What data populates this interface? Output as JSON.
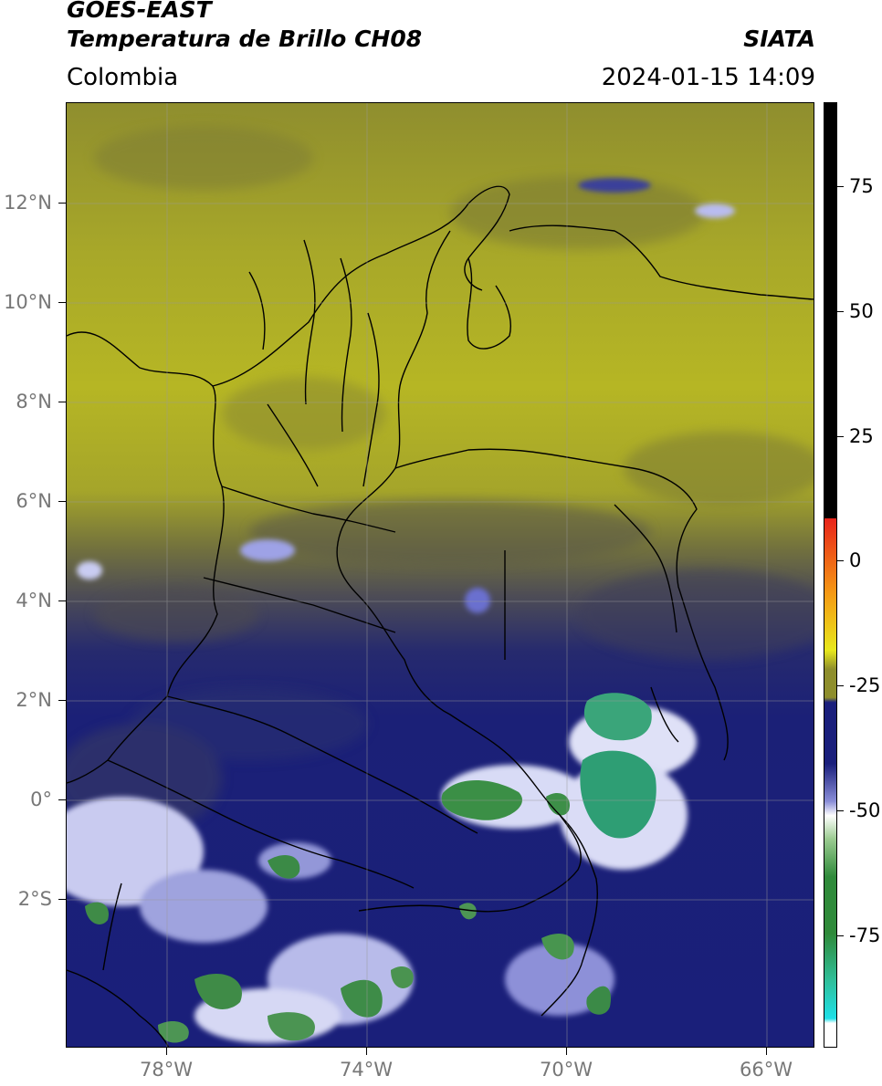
{
  "header": {
    "satellite": "GOES-EAST",
    "product": "Temperatura de Brillo CH08",
    "brand": "SIATA",
    "region": "Colombia",
    "datetime": "2024-01-15 14:09"
  },
  "map": {
    "lat_labels": [
      "12°N",
      "10°N",
      "8°N",
      "6°N",
      "4°N",
      "2°N",
      "0°",
      "2°S"
    ],
    "lon_labels": [
      "78°W",
      "74°W",
      "70°W",
      "66°W"
    ]
  },
  "colorbar": {
    "tick_labels": [
      "75",
      "50",
      "25",
      "0",
      "-25",
      "-50",
      "-75"
    ],
    "colors": {
      "black": "#000000",
      "red": "#e8231a",
      "orange": "#f59a14",
      "yellow": "#e8e81c",
      "olive": "#8e8e2c",
      "navy": "#1a1f7c",
      "white": "#ffffff",
      "green": "#2f8a3a",
      "teal": "#2fbf9a",
      "cyan": "#1ee0e8"
    }
  }
}
